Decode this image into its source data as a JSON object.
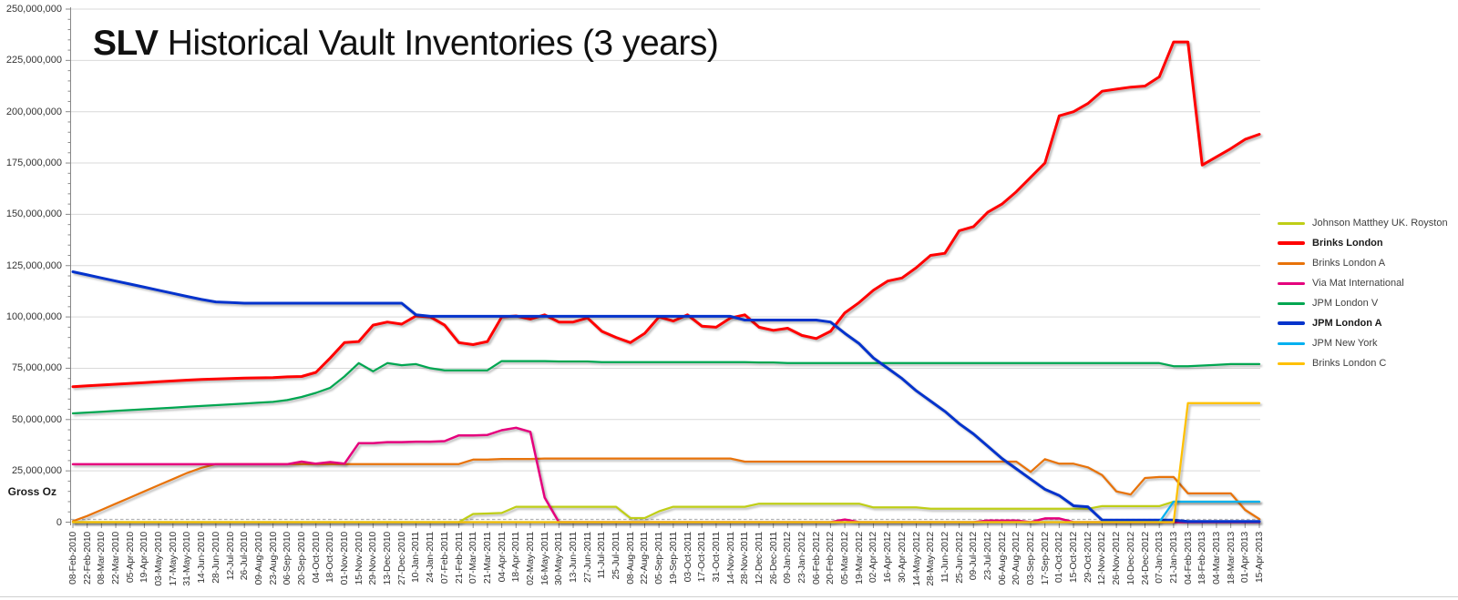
{
  "title": {
    "bold_part": "SLV",
    "rest_part": " Historical Vault Inventories (3 years)"
  },
  "y_axis": {
    "title": "Gross Oz",
    "tick_labels": [
      "0",
      "25,000,000",
      "50,000,000",
      "75,000,000",
      "100,000,000",
      "125,000,000",
      "150,000,000",
      "175,000,000",
      "200,000,000",
      "225,000,000",
      "250,000,000"
    ],
    "tick_step_millions": 25
  },
  "chart_data": {
    "type": "line",
    "title": "SLV Historical Vault Inventories (3 years)",
    "ylabel": "Gross Oz",
    "unit": "troy ounces (series values in millions of oz)",
    "ylim_millions": [
      0,
      250
    ],
    "grid": "horizontal",
    "legend_position": "right",
    "x": [
      "08-Feb-2010",
      "22-Feb-2010",
      "08-Mar-2010",
      "22-Mar-2010",
      "05-Apr-2010",
      "19-Apr-2010",
      "03-May-2010",
      "17-May-2010",
      "31-May-2010",
      "14-Jun-2010",
      "28-Jun-2010",
      "12-Jul-2010",
      "26-Jul-2010",
      "09-Aug-2010",
      "23-Aug-2010",
      "06-Sep-2010",
      "20-Sep-2010",
      "04-Oct-2010",
      "18-Oct-2010",
      "01-Nov-2010",
      "15-Nov-2010",
      "29-Nov-2010",
      "13-Dec-2010",
      "27-Dec-2010",
      "10-Jan-2011",
      "24-Jan-2011",
      "07-Feb-2011",
      "21-Feb-2011",
      "07-Mar-2011",
      "21-Mar-2011",
      "04-Apr-2011",
      "18-Apr-2011",
      "02-May-2011",
      "16-May-2011",
      "30-May-2011",
      "13-Jun-2011",
      "27-Jun-2011",
      "11-Jul-2011",
      "25-Jul-2011",
      "08-Aug-2011",
      "22-Aug-2011",
      "05-Sep-2011",
      "19-Sep-2011",
      "03-Oct-2011",
      "17-Oct-2011",
      "31-Oct-2011",
      "14-Nov-2011",
      "28-Nov-2011",
      "12-Dec-2011",
      "26-Dec-2011",
      "09-Jan-2012",
      "23-Jan-2012",
      "06-Feb-2012",
      "20-Feb-2012",
      "05-Mar-2012",
      "19-Mar-2012",
      "02-Apr-2012",
      "16-Apr-2012",
      "30-Apr-2012",
      "14-May-2012",
      "28-May-2012",
      "11-Jun-2012",
      "25-Jun-2012",
      "09-Jul-2012",
      "23-Jul-2012",
      "06-Aug-2012",
      "20-Aug-2012",
      "03-Sep-2012",
      "17-Sep-2012",
      "01-Oct-2012",
      "15-Oct-2012",
      "29-Oct-2012",
      "12-Nov-2012",
      "26-Nov-2012",
      "10-Dec-2012",
      "24-Dec-2012",
      "07-Jan-2013",
      "21-Jan-2013",
      "04-Feb-2013",
      "18-Feb-2013",
      "04-Mar-2013",
      "18-Mar-2013",
      "01-Apr-2013",
      "15-Apr-2013"
    ],
    "series": [
      {
        "name": "Johnson Matthey UK. Royston",
        "color": "#bfce17",
        "bold": false,
        "width": 2.25,
        "values": [
          0,
          0,
          0,
          0,
          0,
          0,
          0,
          0,
          0,
          0,
          0,
          0,
          0,
          0,
          0,
          0,
          0,
          0,
          0,
          0,
          0,
          0,
          0,
          0,
          0,
          0,
          0,
          0,
          4,
          4.2,
          4.5,
          7.5,
          7.5,
          7.5,
          7.5,
          7.5,
          7.5,
          7.5,
          7.5,
          2,
          2,
          5.3,
          7.5,
          7.5,
          7.5,
          7.5,
          7.5,
          7.5,
          9,
          9,
          9,
          9,
          9,
          9,
          9,
          9,
          7.2,
          7.2,
          7.2,
          7.2,
          6.5,
          6.5,
          6.5,
          6.5,
          6.5,
          6.5,
          6.5,
          6.5,
          6.5,
          6.5,
          6.5,
          6.5,
          7.8,
          7.8,
          7.8,
          7.8,
          7.8,
          10,
          10,
          10,
          10,
          10,
          10,
          10
        ]
      },
      {
        "name": "Brinks London",
        "color": "#ff0000",
        "bold": true,
        "width": 3,
        "values": [
          66,
          66.4,
          66.8,
          67.2,
          67.6,
          68,
          68.4,
          68.8,
          69.2,
          69.5,
          69.8,
          70,
          70.2,
          70.3,
          70.4,
          70.8,
          71,
          73,
          80,
          87.5,
          88,
          96,
          97.5,
          96.5,
          100.5,
          100,
          96,
          87.5,
          86.5,
          88,
          100,
          100.5,
          99,
          101,
          97.5,
          97.5,
          99.5,
          93,
          90,
          87.5,
          92,
          100,
          98,
          101,
          95.5,
          95,
          99.5,
          101,
          95,
          93.5,
          94.5,
          91,
          89.5,
          93,
          102,
          107,
          113,
          117.5,
          119,
          124,
          130,
          131,
          142,
          144,
          151,
          155,
          161,
          168,
          175,
          198,
          200,
          204,
          210,
          211,
          212,
          212.5,
          217,
          234,
          234,
          174,
          178,
          182,
          186.5,
          189
        ]
      },
      {
        "name": "Brinks London A",
        "color": "#e8730a",
        "bold": false,
        "width": 2.25,
        "values": [
          0.5,
          3,
          6,
          9,
          12,
          15,
          18,
          21,
          24,
          26.5,
          28.3,
          28.3,
          28.3,
          28.3,
          28.3,
          28.3,
          28.3,
          28.3,
          28.3,
          28.3,
          28.3,
          28.3,
          28.3,
          28.3,
          28.3,
          28.3,
          28.3,
          28.3,
          30.5,
          30.5,
          30.8,
          30.8,
          30.8,
          31,
          31,
          31,
          31,
          31,
          31,
          31,
          31,
          31,
          31,
          31,
          31,
          31,
          31,
          29.5,
          29.5,
          29.5,
          29.5,
          29.5,
          29.5,
          29.5,
          29.5,
          29.5,
          29.5,
          29.5,
          29.5,
          29.5,
          29.5,
          29.5,
          29.5,
          29.5,
          29.5,
          29.5,
          29.5,
          24.5,
          30.7,
          28.5,
          28.5,
          26.7,
          23,
          15,
          13.5,
          21.5,
          22,
          22,
          14,
          14,
          14,
          14,
          6,
          1.5
        ]
      },
      {
        "name": "Via Mat International",
        "color": "#e5007d",
        "bold": false,
        "width": 2.5,
        "values": [
          28.2,
          28.2,
          28.2,
          28.2,
          28.2,
          28.2,
          28.2,
          28.2,
          28.2,
          28.2,
          28.2,
          28.2,
          28.2,
          28.2,
          28.2,
          28.2,
          29.5,
          28.5,
          29.3,
          28.5,
          38.5,
          38.5,
          39,
          39,
          39.2,
          39.2,
          39.5,
          42.3,
          42.3,
          42.5,
          44.8,
          46,
          44,
          12,
          0,
          0,
          0,
          0,
          0,
          0,
          0,
          0,
          0,
          0,
          0,
          0,
          0,
          0,
          0,
          0,
          0,
          0,
          0,
          0,
          1.3,
          0,
          0,
          0,
          0,
          0,
          0,
          0,
          0,
          0,
          0.8,
          0.8,
          0.8,
          0,
          1.8,
          1.8,
          0,
          0,
          0,
          0,
          0,
          0,
          0,
          0,
          0,
          0,
          0,
          0,
          0,
          0
        ]
      },
      {
        "name": "JPM London V",
        "color": "#00a651",
        "bold": false,
        "width": 2.25,
        "values": [
          53,
          53.4,
          53.8,
          54.2,
          54.6,
          55,
          55.4,
          55.8,
          56.2,
          56.6,
          57,
          57.4,
          57.8,
          58.2,
          58.6,
          59.5,
          61,
          63,
          65.5,
          71,
          77.5,
          73.5,
          77.5,
          76.5,
          77,
          75,
          74,
          74,
          74,
          74,
          78.5,
          78.5,
          78.5,
          78.5,
          78.3,
          78.3,
          78.3,
          78,
          78,
          78,
          78,
          78,
          78,
          78,
          78,
          78,
          78,
          78,
          77.8,
          77.8,
          77.5,
          77.5,
          77.5,
          77.5,
          77.5,
          77.5,
          77.5,
          77.5,
          77.5,
          77.5,
          77.5,
          77.5,
          77.5,
          77.5,
          77.5,
          77.5,
          77.5,
          77.5,
          77.5,
          77.5,
          77.5,
          77.5,
          77.5,
          77.5,
          77.5,
          77.5,
          77.5,
          76,
          76,
          76.3,
          76.6,
          77,
          77,
          77
        ]
      },
      {
        "name": "JPM London A",
        "color": "#0433cc",
        "bold": true,
        "width": 3,
        "values": [
          122,
          120.5,
          119,
          117.5,
          116,
          114.5,
          113,
          111.5,
          110,
          108.5,
          107.3,
          107,
          106.7,
          106.7,
          106.7,
          106.7,
          106.7,
          106.7,
          106.7,
          106.7,
          106.7,
          106.7,
          106.7,
          106.7,
          101,
          100.3,
          100.3,
          100.3,
          100.3,
          100.3,
          100.3,
          100.3,
          100.3,
          100.3,
          100.3,
          100.3,
          100.3,
          100.3,
          100.3,
          100.3,
          100.3,
          100.3,
          100.3,
          100.3,
          100.3,
          100.3,
          100.3,
          98.5,
          98.5,
          98.5,
          98.5,
          98.5,
          98.5,
          97.5,
          92,
          87,
          80,
          75,
          70,
          64,
          59,
          54,
          48,
          43,
          37,
          31,
          26,
          21,
          16,
          13,
          8,
          7.5,
          1,
          1,
          1,
          1,
          1,
          1,
          0.3,
          0.3,
          0.3,
          0.3,
          0.3,
          0.3
        ]
      },
      {
        "name": "JPM New York",
        "color": "#00b0f0",
        "bold": false,
        "width": 2.25,
        "values": [
          0,
          0,
          0,
          0,
          0,
          0,
          0,
          0,
          0,
          0,
          0,
          0,
          0,
          0,
          0,
          0,
          0,
          0,
          0,
          0,
          0,
          0,
          0,
          0,
          0,
          0,
          0,
          0,
          0,
          0,
          0,
          0,
          0,
          0,
          0,
          0,
          0,
          0,
          0,
          0,
          0,
          0,
          0,
          0,
          0,
          0,
          0,
          0,
          0,
          0,
          0,
          0,
          0,
          0,
          0,
          0,
          0,
          0,
          0,
          0,
          0,
          0,
          0,
          0,
          0,
          0,
          0,
          0,
          0,
          0,
          0,
          0,
          0,
          0,
          0,
          0,
          0,
          10,
          10,
          10,
          10,
          10,
          10,
          10
        ]
      },
      {
        "name": "Brinks London C",
        "color": "#ffc000",
        "bold": false,
        "width": 2.25,
        "values": [
          0,
          0,
          0,
          0,
          0,
          0,
          0,
          0,
          0,
          0,
          0,
          0,
          0,
          0,
          0,
          0,
          0,
          0,
          0,
          0,
          0,
          0,
          0,
          0,
          0,
          0,
          0,
          0,
          0,
          0,
          0,
          0,
          0,
          0,
          0,
          0,
          0,
          0,
          0,
          0,
          0,
          0,
          0,
          0,
          0,
          0,
          0,
          0,
          0,
          0,
          0,
          0,
          0,
          0,
          0,
          0,
          0,
          0,
          0,
          0,
          0,
          0,
          0,
          0,
          0,
          0,
          0,
          0,
          0,
          0,
          0,
          0,
          0,
          0,
          0,
          0,
          0,
          0,
          58,
          58,
          58,
          58,
          58,
          58
        ]
      }
    ]
  }
}
